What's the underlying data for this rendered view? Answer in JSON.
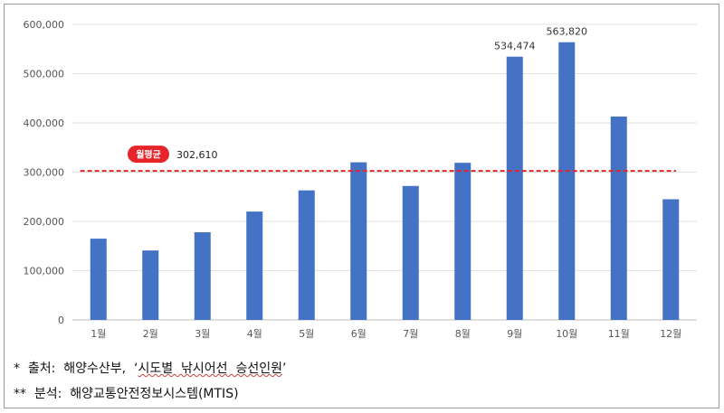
{
  "chart_data": {
    "type": "bar",
    "categories": [
      "1월",
      "2월",
      "3월",
      "4월",
      "5월",
      "6월",
      "7월",
      "8월",
      "9월",
      "10월",
      "11월",
      "12월"
    ],
    "values": [
      165000,
      141000,
      178000,
      220000,
      263000,
      320000,
      272000,
      319000,
      534474,
      563820,
      413000,
      245000
    ],
    "data_labels": {
      "8": "534,474",
      "9": "563,820"
    },
    "ylim": [
      0,
      600000
    ],
    "yticks": [
      0,
      100000,
      200000,
      300000,
      400000,
      500000,
      600000
    ],
    "ytick_labels": [
      "0",
      "100,000",
      "200,000",
      "300,000",
      "400,000",
      "500,000",
      "600,000"
    ],
    "grid": true,
    "bar_color": "#4472c4",
    "average": {
      "badge": "월평균",
      "value": 302610,
      "label": "302,610",
      "color": "#e8242b"
    }
  },
  "notes": {
    "source_prefix": "*  출처:  해양수산부,  ‘",
    "source_title": "시도별  낚시어선  승선인원",
    "source_suffix": "’",
    "analysis_prefix": "**  분석:  해양교통안전정보시스템",
    "analysis_suffix": "(MTIS)"
  }
}
